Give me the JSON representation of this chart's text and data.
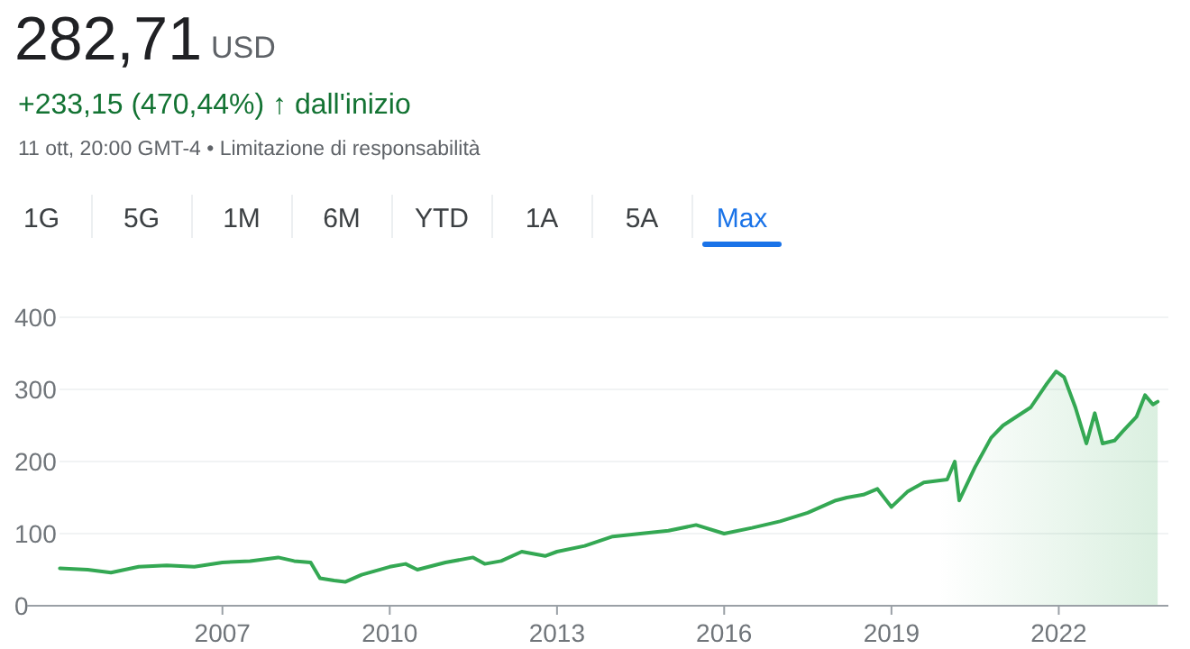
{
  "chart_data": {
    "type": "area",
    "title": "282,71",
    "subtitle": "+233,15 (470,44%) ↑ dall'inizio",
    "annotations": [
      "USD",
      "11 ott, 20:00 GMT-4 • Limitazione di responsabilità",
      "1G",
      "5G",
      "1M",
      "6M",
      "YTD",
      "1A",
      "5A",
      "Max"
    ],
    "x": [
      "2004-02-01",
      "2004-08-01",
      "2005-01-01",
      "2005-07-01",
      "2006-01-01",
      "2006-07-01",
      "2007-01-01",
      "2007-07-01",
      "2008-01-01",
      "2008-04-15",
      "2008-08-01",
      "2008-10-01",
      "2009-01-01",
      "2009-03-15",
      "2009-07-01",
      "2010-01-01",
      "2010-04-15",
      "2010-07-01",
      "2011-01-01",
      "2011-07-01",
      "2011-09-15",
      "2012-01-01",
      "2012-05-15",
      "2012-10-15",
      "2013-01-01",
      "2013-07-01",
      "2014-01-01",
      "2014-07-01",
      "2015-01-01",
      "2015-07-01",
      "2016-01-01",
      "2016-07-01",
      "2017-01-01",
      "2017-07-01",
      "2018-01-01",
      "2018-03-15",
      "2018-07-01",
      "2018-10-01",
      "2019-01-01",
      "2019-04-15",
      "2019-08-01",
      "2020-01-01",
      "2020-02-20",
      "2020-03-20",
      "2020-07-01",
      "2020-10-15",
      "2021-01-01",
      "2021-07-01",
      "2021-10-15",
      "2021-12-15",
      "2022-02-05",
      "2022-04-20",
      "2022-07-01",
      "2022-08-25",
      "2022-10-15",
      "2023-01-01",
      "2023-02-25",
      "2023-05-25",
      "2023-07-20",
      "2023-09-10",
      "2023-10-11"
    ],
    "series": [
      {
        "color": "#34a853",
        "values": [
          52,
          50,
          46,
          54,
          56,
          54,
          60,
          62,
          67,
          62,
          60,
          38,
          35,
          33,
          43,
          54,
          58,
          50,
          60,
          67,
          58,
          62,
          75,
          69,
          75,
          83,
          96,
          100,
          104,
          112,
          100,
          108,
          117,
          129,
          146,
          150,
          154,
          162,
          137,
          158,
          171,
          175,
          200,
          146,
          192,
          233,
          250,
          275,
          308,
          325,
          317,
          275,
          225,
          267,
          225,
          229,
          242,
          262,
          292,
          279,
          283
        ]
      }
    ],
    "xlim": [
      "2003-07-01",
      "2023-12-20"
    ],
    "xticks": [
      {
        "value": "2007-01-01",
        "label": "2007"
      },
      {
        "value": "2010-01-01",
        "label": "2010"
      },
      {
        "value": "2013-01-01",
        "label": "2013"
      },
      {
        "value": "2016-01-01",
        "label": "2016"
      },
      {
        "value": "2019-01-01",
        "label": "2019"
      },
      {
        "value": "2022-01-01",
        "label": "2022"
      }
    ],
    "ylim": [
      0,
      400
    ],
    "yticks": [
      0,
      100,
      200,
      300,
      400
    ],
    "grid": "y",
    "marker": "none",
    "line_style": "solid"
  }
}
